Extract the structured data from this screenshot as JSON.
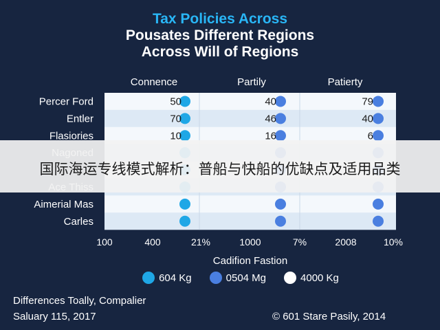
{
  "chart_data": {
    "type": "table",
    "title_lines": [
      "Tax Policies Across",
      "Pousates Different Regions",
      "Across Will of Regions"
    ],
    "columns": [
      "Connence",
      "Partily",
      "Patierty"
    ],
    "rows": [
      {
        "label": "Percer Ford",
        "values": [
          "50",
          "40",
          "79"
        ]
      },
      {
        "label": "Entler",
        "values": [
          "70",
          "46",
          "40"
        ]
      },
      {
        "label": "Flasiories",
        "values": [
          "10",
          "16",
          "6"
        ]
      },
      {
        "label": "Nagoned",
        "values": [
          "",
          "",
          ""
        ]
      },
      {
        "label": "",
        "values": [
          "",
          "",
          ""
        ]
      },
      {
        "label": "Ace Thiss",
        "values": [
          "",
          "",
          ""
        ]
      },
      {
        "label": "Aimerial Mas",
        "values": [
          "",
          "",
          ""
        ]
      },
      {
        "label": "Carles",
        "values": [
          "",
          "",
          ""
        ]
      }
    ],
    "x_ticks": [
      "100",
      "400",
      "21%",
      "1000",
      "7%",
      "2008",
      "10%"
    ],
    "xlabel": "Cadifion Fastion",
    "legend": [
      {
        "name": "604 Kg",
        "color": "#1fa7e6"
      },
      {
        "name": "0504 Mg",
        "color": "#4a7fe0"
      },
      {
        "name": "4000 Kg",
        "color": "#ffffff"
      }
    ],
    "marker_colors": [
      "#1fa7e6",
      "#4a7fe0",
      "#4a7fe0"
    ],
    "grid": true
  },
  "banner": {
    "text": "国际海运专线模式解析：普船与快船的优缺点及适用品类"
  },
  "footer": {
    "left_line1": "Differences Toally, Compalier",
    "left_line2": "Saluary 115, 2017",
    "right": "© 601 Stare Pasily, 2014"
  }
}
